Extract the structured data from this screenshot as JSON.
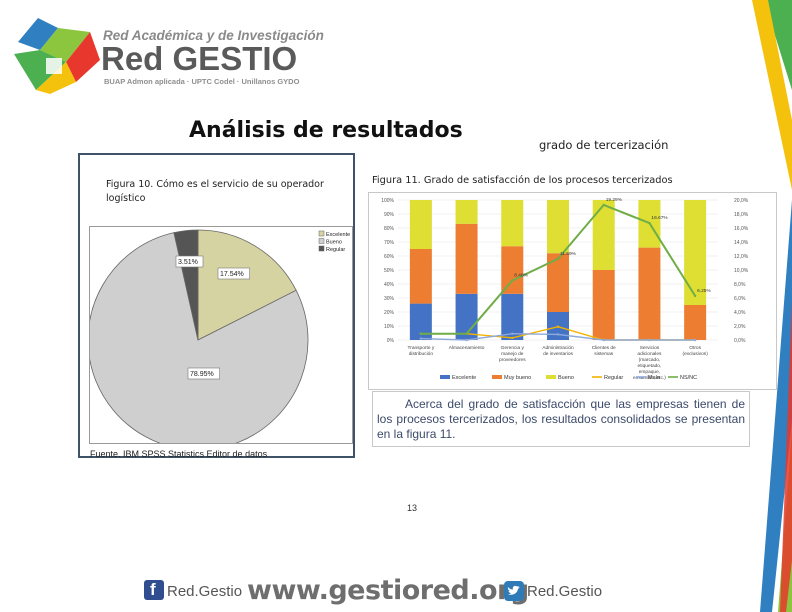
{
  "logo": {
    "subtitle": "Red Académica y de Investigación",
    "name": "Red GESTIO",
    "caption": "BUAP Admon aplicada · UPTC Codel · Unillanos GYDO"
  },
  "slide": {
    "title": "Análisis de resultados",
    "subtitle": "grado de tercerización",
    "paragraph": "Acerca del grado de satisfacción que las empresas tienen de los procesos tercerizados, los resultados consolidados se presentan en la figura 11.",
    "page_number": "13"
  },
  "figure10": {
    "caption": "Figura 10. Cómo es el servicio de su operador logístico",
    "source": "Fuente. IBM SPSS Statistics Editor de datos"
  },
  "figure11": {
    "caption": "Figura 11. Grado de satisfacción de los procesos tercerizados"
  },
  "footer": {
    "facebook_label": "Red.Gestio",
    "url": "www.gestiored.org",
    "twitter_label": "Red.Gestio"
  },
  "colors": {
    "excelente": "#4472c4",
    "muy_bueno": "#ed7d31",
    "bueno": "#dede33",
    "regular": "#f2b400",
    "malo": "#8ea9db",
    "ns_nc": "#70ad47",
    "pie_excelente": "#d6d3a2",
    "pie_bueno": "#cfcfcf",
    "pie_regular": "#555555",
    "logo_red": "#e8372c",
    "logo_green": "#8cc63f",
    "logo_blue": "#2f7fc1",
    "logo_yellow": "#f4c20d"
  },
  "chart_data": [
    {
      "type": "pie",
      "legend": [
        "Excelente",
        "Bueno",
        "Regular"
      ],
      "legend_position": "top-right",
      "values": [
        17.54,
        78.95,
        3.51
      ],
      "labels": [
        "17.54%",
        "78.95%",
        "3.51%"
      ]
    },
    {
      "type": "bar",
      "stacked": true,
      "categories": [
        "Transporte y distribución",
        "Almacenamiento",
        "Gerencia y manejo de proveedores",
        "Administración de inventarios",
        "Clientes de sistemas",
        "Servicios adicionales (marcado, etiquetado, empaque, ensamble, etc.)",
        "Otros (exclusivos)"
      ],
      "series": [
        {
          "name": "Excelente",
          "values": [
            26,
            33,
            33,
            20,
            0,
            0,
            0
          ]
        },
        {
          "name": "Muy bueno",
          "values": [
            39,
            50,
            34,
            42,
            50,
            66,
            25
          ]
        },
        {
          "name": "Bueno",
          "values": [
            35,
            17,
            33,
            38,
            50,
            34,
            75
          ]
        }
      ],
      "line_series": [
        {
          "name": "Regular",
          "values": [
            0.9,
            0.9,
            0.3,
            1.9,
            0,
            0,
            0
          ]
        },
        {
          "name": "Malo",
          "values": [
            0.2,
            0,
            0.9,
            0.8,
            0,
            0,
            0
          ]
        },
        {
          "name": "NS/NC",
          "values": [
            0.9,
            0.9,
            8.5,
            11.6,
            19.3,
            16.7,
            6.3
          ],
          "labels": [
            "",
            "",
            "8.48%",
            "11.59%",
            "19.29%",
            "16.67%",
            "6.25%"
          ]
        }
      ],
      "left_axis": {
        "ticks": [
          "0%",
          "10%",
          "20%",
          "30%",
          "40%",
          "50%",
          "60%",
          "70%",
          "80%",
          "90%",
          "100%"
        ],
        "ylim": [
          0,
          100
        ]
      },
      "right_axis": {
        "ticks": [
          "0,0%",
          "2,0%",
          "4,0%",
          "6,0%",
          "8,0%",
          "10,0%",
          "12,0%",
          "14,0%",
          "16,0%",
          "18,0%",
          "20,0%"
        ],
        "ylim": [
          0,
          20
        ]
      },
      "legend": [
        "Excelente",
        "Muy bueno",
        "Bueno",
        "Regular",
        "Malo",
        "NS/NC"
      ],
      "legend_position": "bottom"
    }
  ]
}
